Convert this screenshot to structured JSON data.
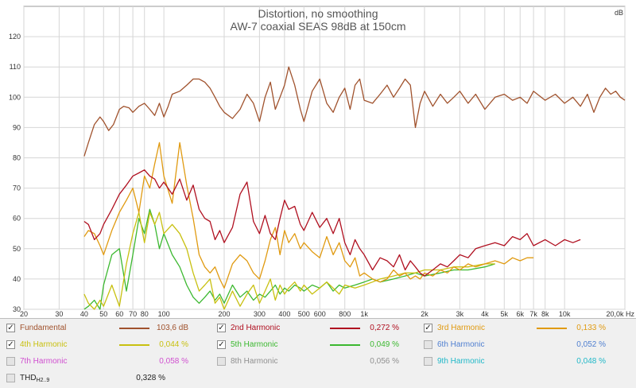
{
  "chart_data": {
    "type": "line",
    "title": "Distortion, no smoothing",
    "subtitle": "AW-7 coaxial SEAS 98dB at 150cm",
    "y_unit": "dB",
    "x_scale": "log",
    "xlim": [
      20,
      20000
    ],
    "ylim": [
      30,
      130
    ],
    "y_ticks": [
      "30",
      "40",
      "50",
      "60",
      "70",
      "80",
      "90",
      "100",
      "110",
      "120"
    ],
    "x_ticks": [
      {
        "v": 20,
        "label": "20"
      },
      {
        "v": 30,
        "label": "30"
      },
      {
        "v": 40,
        "label": "40"
      },
      {
        "v": 50,
        "label": "50"
      },
      {
        "v": 60,
        "label": "60"
      },
      {
        "v": 70,
        "label": "70"
      },
      {
        "v": 80,
        "label": "80"
      },
      {
        "v": 100,
        "label": "100"
      },
      {
        "v": 200,
        "label": "200"
      },
      {
        "v": 300,
        "label": "300"
      },
      {
        "v": 400,
        "label": "400"
      },
      {
        "v": 500,
        "label": "500"
      },
      {
        "v": 600,
        "label": "600"
      },
      {
        "v": 800,
        "label": "800"
      },
      {
        "v": 1000,
        "label": "1k"
      },
      {
        "v": 2000,
        "label": "2k"
      },
      {
        "v": 3000,
        "label": "3k"
      },
      {
        "v": 4000,
        "label": "4k"
      },
      {
        "v": 5000,
        "label": "5k"
      },
      {
        "v": 6000,
        "label": "6k"
      },
      {
        "v": 7000,
        "label": "7k"
      },
      {
        "v": 8000,
        "label": "8k"
      },
      {
        "v": 10000,
        "label": "10k"
      },
      {
        "v": 20000,
        "label": "20,0k Hz"
      }
    ],
    "grid": true,
    "series": [
      {
        "name": "Fundamental",
        "color": "#a0522d",
        "x": [
          40,
          42,
          45,
          48,
          50,
          53,
          56,
          60,
          63,
          67,
          70,
          75,
          80,
          85,
          90,
          95,
          100,
          105,
          110,
          120,
          130,
          140,
          150,
          160,
          170,
          180,
          190,
          200,
          220,
          240,
          260,
          280,
          300,
          320,
          340,
          360,
          380,
          400,
          420,
          450,
          480,
          500,
          550,
          600,
          650,
          700,
          750,
          800,
          850,
          900,
          950,
          1000,
          1100,
          1200,
          1300,
          1400,
          1500,
          1600,
          1700,
          1800,
          1900,
          2000,
          2200,
          2400,
          2600,
          2800,
          3000,
          3300,
          3600,
          4000,
          4500,
          5000,
          5500,
          6000,
          6500,
          7000,
          8000,
          9000,
          10000,
          11000,
          12000,
          13000,
          14000,
          15000,
          16000,
          17000,
          18000,
          19000,
          20000
        ],
        "y": [
          80.5,
          85,
          91,
          93.5,
          92,
          89,
          91,
          96,
          97,
          96.5,
          95,
          97,
          98,
          96,
          94,
          98,
          93.5,
          97,
          101,
          102,
          104,
          106,
          106,
          105,
          103,
          100,
          97,
          95,
          93,
          96,
          101,
          98,
          92,
          100,
          105,
          96,
          100,
          104,
          110,
          104,
          96,
          92,
          102,
          106,
          98,
          95,
          100,
          103,
          96,
          104,
          106,
          99,
          98,
          101,
          104,
          100,
          103,
          106,
          104,
          90,
          98,
          102,
          97,
          101,
          98,
          100,
          102,
          98,
          101,
          96,
          100,
          101,
          99,
          100,
          98,
          102,
          99,
          101,
          98,
          100,
          97,
          101,
          95,
          100,
          103,
          101,
          102,
          100,
          99
        ]
      },
      {
        "name": "2nd Harmonic",
        "color": "#b01020",
        "x": [
          40,
          42,
          45,
          48,
          50,
          55,
          60,
          65,
          70,
          75,
          80,
          85,
          90,
          95,
          100,
          110,
          120,
          130,
          140,
          150,
          160,
          170,
          180,
          190,
          200,
          220,
          240,
          260,
          280,
          300,
          320,
          340,
          360,
          380,
          400,
          420,
          450,
          480,
          500,
          550,
          600,
          650,
          700,
          750,
          800,
          850,
          900,
          950,
          1000,
          1100,
          1200,
          1300,
          1400,
          1500,
          1600,
          1700,
          1800,
          1900,
          2000,
          2200,
          2400,
          2600,
          2800,
          3000,
          3300,
          3600,
          4000,
          4500,
          5000,
          5500,
          6000,
          6500,
          7000,
          8000,
          9000,
          10000,
          11000,
          12000
        ],
        "y": [
          59,
          58,
          53,
          55,
          58,
          63,
          68,
          71,
          74,
          75,
          76,
          74,
          73,
          70,
          72,
          68,
          73,
          66,
          71,
          63,
          60,
          59,
          53,
          56,
          52,
          57,
          68,
          72,
          59,
          55,
          61,
          55,
          53,
          60,
          66,
          63,
          64,
          58,
          56,
          62,
          57,
          60,
          55,
          60,
          52,
          48,
          53,
          50,
          48,
          43,
          47,
          46,
          44,
          48,
          43,
          46,
          44,
          42,
          41,
          43,
          45,
          44,
          46,
          48,
          47,
          50,
          51,
          52,
          51,
          54,
          53,
          55,
          51,
          53,
          51,
          53,
          52,
          53
        ]
      },
      {
        "name": "3rd Harmonic",
        "color": "#e09a10",
        "x": [
          40,
          42,
          45,
          48,
          50,
          55,
          60,
          65,
          70,
          75,
          80,
          85,
          90,
          95,
          100,
          110,
          120,
          130,
          140,
          150,
          160,
          170,
          180,
          190,
          200,
          220,
          240,
          260,
          280,
          300,
          320,
          340,
          360,
          380,
          400,
          420,
          450,
          480,
          500,
          550,
          600,
          650,
          700,
          750,
          800,
          850,
          900,
          950,
          1000,
          1100,
          1200,
          1300,
          1400,
          1500,
          1600,
          1700,
          1800,
          1900,
          2000,
          2200,
          2400,
          2600,
          2800,
          3000,
          3300,
          3600,
          4000,
          4500,
          5000,
          5500,
          6000,
          6500,
          7000
        ],
        "y": [
          54,
          56,
          55,
          51,
          48,
          56,
          62,
          66,
          70,
          62,
          74,
          70,
          78,
          85,
          74,
          65,
          85,
          71,
          60,
          48,
          44,
          42,
          44,
          40,
          37,
          45,
          48,
          46,
          42,
          40,
          46,
          53,
          57,
          48,
          56,
          52,
          55,
          50,
          52,
          49,
          47,
          54,
          48,
          52,
          46,
          44,
          47,
          41,
          42,
          40,
          39,
          40,
          43,
          41,
          42,
          40,
          41,
          40,
          42,
          41,
          43,
          42,
          44,
          43,
          45,
          44,
          45,
          46,
          45,
          47,
          46,
          47,
          47
        ]
      },
      {
        "name": "4th Harmonic",
        "color": "#c8c010",
        "x": [
          40,
          42,
          45,
          48,
          50,
          55,
          60,
          65,
          70,
          75,
          80,
          85,
          90,
          95,
          100,
          110,
          120,
          130,
          140,
          150,
          160,
          170,
          180,
          190,
          200,
          220,
          240,
          260,
          280,
          300,
          320,
          340,
          360,
          380,
          400,
          420,
          450,
          480,
          500,
          550,
          600,
          650,
          700,
          750,
          800,
          900,
          1000,
          1100,
          1200,
          1400,
          1600,
          1800,
          2000,
          2400,
          2800,
          3300,
          4000,
          4500
        ],
        "y": [
          35,
          32,
          30,
          33,
          31,
          38,
          31,
          45,
          55,
          62,
          52,
          62,
          58,
          62,
          55,
          58,
          55,
          50,
          42,
          36,
          38,
          40,
          32,
          34,
          30,
          36,
          31,
          35,
          38,
          32,
          36,
          40,
          33,
          38,
          35,
          37,
          39,
          36,
          38,
          35,
          37,
          39,
          37,
          35,
          38,
          37,
          38,
          39,
          40,
          41,
          42,
          42,
          43,
          43,
          44,
          44,
          45,
          45
        ]
      },
      {
        "name": "5th Harmonic",
        "color": "#3cb830",
        "x": [
          40,
          42,
          45,
          48,
          50,
          55,
          60,
          65,
          70,
          75,
          80,
          85,
          90,
          95,
          100,
          110,
          120,
          130,
          140,
          150,
          160,
          170,
          180,
          190,
          200,
          220,
          240,
          260,
          280,
          300,
          320,
          340,
          360,
          380,
          400,
          420,
          450,
          480,
          500,
          550,
          600,
          650,
          700,
          750,
          800,
          900,
          1000,
          1100,
          1200,
          1400,
          1600,
          1800,
          2000,
          2400,
          2800,
          3300,
          4000,
          4500
        ],
        "y": [
          30,
          31,
          33,
          30,
          38,
          48,
          50,
          36,
          48,
          60,
          55,
          63,
          58,
          50,
          55,
          48,
          44,
          38,
          34,
          32,
          34,
          36,
          33,
          35,
          32,
          38,
          34,
          36,
          33,
          35,
          34,
          36,
          38,
          35,
          37,
          36,
          38,
          37,
          36,
          38,
          37,
          39,
          36,
          38,
          37,
          38,
          39,
          40,
          39,
          40,
          41,
          42,
          41,
          42,
          43,
          43,
          44,
          45
        ]
      }
    ]
  },
  "legend": [
    {
      "label": "Fundamental",
      "value": "103,6 dB",
      "checked": true,
      "color": "#a0522d",
      "swatch": true
    },
    {
      "label": "2nd Harmonic",
      "value": "0,272 %",
      "checked": true,
      "color": "#b01020",
      "swatch": true
    },
    {
      "label": "3rd Harmonic",
      "value": "0,133 %",
      "checked": true,
      "color": "#e09a10",
      "swatch": true
    },
    {
      "label": "4th Harmonic",
      "value": "0,044 %",
      "checked": true,
      "color": "#c8c010",
      "swatch": true
    },
    {
      "label": "5th Harmonic",
      "value": "0,049 %",
      "checked": true,
      "color": "#3cb830",
      "swatch": true
    },
    {
      "label": "6th Harmonic",
      "value": "0,052 %",
      "checked": false,
      "color": "#4f7fd0",
      "swatch": false
    },
    {
      "label": "7th Harmonic",
      "value": "0,058 %",
      "checked": false,
      "color": "#d050d0",
      "swatch": false
    },
    {
      "label": "8th Harmonic",
      "value": "0,056 %",
      "checked": false,
      "color": "#909090",
      "swatch": false
    },
    {
      "label": "9th Harmonic",
      "value": "0,048 %",
      "checked": false,
      "color": "#20b8c8",
      "swatch": false
    }
  ],
  "thd": {
    "label": "THD",
    "sub": "H2..9",
    "value": "0,328 %",
    "checked": false
  }
}
